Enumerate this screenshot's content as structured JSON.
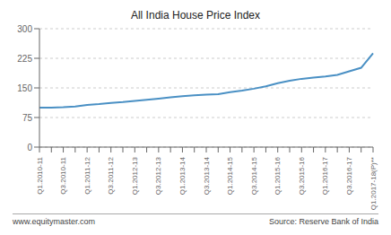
{
  "chart_data": {
    "type": "line",
    "title": "All India House Price Index",
    "categories": [
      "Q1.2010-11",
      null,
      "Q3.2010-11",
      null,
      "Q1.2011-12",
      null,
      "Q3.2011-12",
      null,
      "Q1.2012-13",
      null,
      "Q3.2012-13",
      null,
      "Q1.2013-14",
      null,
      "Q3.2013-14",
      null,
      "Q1.2014-15",
      null,
      "Q3.2014-15",
      null,
      "Q1.2015-16",
      null,
      "Q3.2015-16",
      null,
      "Q1.2016-17",
      null,
      "Q3.2016-17",
      null,
      "Q1.2017-18(P)**"
    ],
    "values": [
      100,
      100,
      101,
      103,
      107,
      109,
      112,
      114,
      117,
      120,
      123,
      126,
      129,
      131,
      133,
      134,
      139,
      143,
      148,
      154,
      162,
      168,
      173,
      176,
      179,
      183,
      192,
      201,
      238
    ],
    "color": "#4a90c4",
    "ylim": [
      0,
      300
    ],
    "yticks": [
      0,
      75,
      150,
      225,
      300
    ],
    "grid": true,
    "annotations": [
      "www.equitymaster.com",
      "Source: Reserve Bank of India"
    ]
  }
}
